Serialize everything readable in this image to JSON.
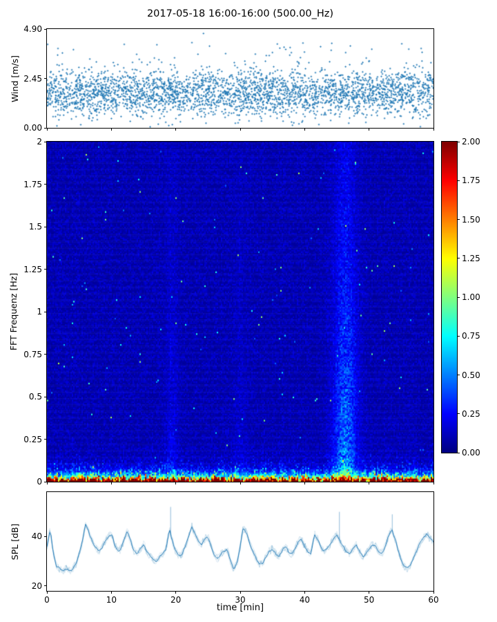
{
  "figure": {
    "title": "2017-05-18 16:00-16:00 (500.00_Hz)",
    "background": "#ffffff",
    "accent_color": "#1f77b4"
  },
  "chart_data": [
    {
      "id": "wind",
      "type": "scatter",
      "ylabel": "Wind [m/s]",
      "ylim": [
        0,
        4.9
      ],
      "xlim": [
        0,
        60
      ],
      "yticks": [
        {
          "label": "4.90",
          "value": 4.9
        },
        {
          "label": "2.45",
          "value": 2.45
        },
        {
          "label": "0.00",
          "value": 0
        }
      ],
      "marker": "+",
      "color": "#1f77b4",
      "n_points": 3200,
      "seed": 7,
      "y_mean": 1.75,
      "y_spread": 1.1,
      "high_tail_prob": 0.05
    },
    {
      "id": "spectrogram",
      "type": "heatmap",
      "ylabel": "FFT Frequenz [Hz]",
      "ylim": [
        0,
        2
      ],
      "xlim": [
        0,
        60
      ],
      "yticks": [
        {
          "label": "2",
          "value": 2
        },
        {
          "label": "1.75",
          "value": 1.75
        },
        {
          "label": "1.5",
          "value": 1.5
        },
        {
          "label": "1.25",
          "value": 1.25
        },
        {
          "label": "1",
          "value": 1
        },
        {
          "label": "0.75",
          "value": 0.75
        },
        {
          "label": "0.5",
          "value": 0.5
        },
        {
          "label": "0.25",
          "value": 0.25
        },
        {
          "label": "0",
          "value": 0
        }
      ],
      "colormap": "jet",
      "clim": [
        0,
        2
      ],
      "colorbar_ticks": [
        {
          "label": "2.00",
          "value": 2
        },
        {
          "label": "1.75",
          "value": 1.75
        },
        {
          "label": "1.50",
          "value": 1.5
        },
        {
          "label": "1.25",
          "value": 1.25
        },
        {
          "label": "1.00",
          "value": 1
        },
        {
          "label": "0.75",
          "value": 0.75
        },
        {
          "label": "0.50",
          "value": 0.5
        },
        {
          "label": "0.25",
          "value": 0.25
        },
        {
          "label": "0.00",
          "value": 0
        }
      ],
      "seed": 11,
      "grid": {
        "cols": 280,
        "rows": 220
      },
      "features": {
        "noise_floor": 0.05,
        "low_freq_band": {
          "amplitude": 2.6,
          "decay_hz": 0.022
        },
        "mid_speckle": {
          "amplitude": 1.3,
          "decay_hz": 0.06
        },
        "bright_stripes": [
          {
            "t_center": 46.3,
            "t_sigma": 1.3,
            "amplitude": 0.55
          },
          {
            "t_center": 19.4,
            "t_sigma": 0.7,
            "amplitude": 0.15
          },
          {
            "t_center": 30.0,
            "t_sigma": 0.8,
            "amplitude": 0.08
          }
        ]
      }
    },
    {
      "id": "spl",
      "type": "line",
      "ylabel": "SPL [dB]",
      "xlabel": "time [min]",
      "ylim": [
        18,
        58
      ],
      "xlim": [
        0,
        60
      ],
      "yticks": [
        {
          "label": "40",
          "value": 40
        },
        {
          "label": "20",
          "value": 20
        }
      ],
      "xticks": [
        {
          "label": "0",
          "value": 0
        },
        {
          "label": "10",
          "value": 10
        },
        {
          "label": "20",
          "value": 20
        },
        {
          "label": "30",
          "value": 30
        },
        {
          "label": "40",
          "value": 40
        },
        {
          "label": "50",
          "value": 50
        },
        {
          "label": "60",
          "value": 60
        }
      ],
      "color": "#1f77b4",
      "x_start": 0,
      "x_step": 0.5,
      "values": [
        36,
        43,
        33,
        28,
        27,
        26,
        27,
        26,
        27,
        29,
        33,
        38,
        45,
        42,
        38,
        36,
        34,
        35,
        38,
        40,
        41,
        37,
        34,
        35,
        39,
        42,
        38,
        34,
        33,
        35,
        37,
        34,
        32,
        31,
        30,
        32,
        33,
        35,
        43,
        38,
        34,
        32,
        33,
        36,
        40,
        44,
        41,
        38,
        37,
        39,
        40,
        36,
        32,
        31,
        33,
        34,
        35,
        30,
        27,
        29,
        36,
        44,
        41,
        37,
        34,
        31,
        29,
        29,
        32,
        34,
        35,
        33,
        32,
        34,
        36,
        34,
        33,
        35,
        38,
        39,
        36,
        34,
        33,
        41,
        39,
        36,
        34,
        35,
        37,
        39,
        41,
        38,
        36,
        34,
        33,
        35,
        37,
        34,
        32,
        33,
        35,
        37,
        36,
        34,
        33,
        36,
        40,
        43,
        39,
        35,
        30,
        28,
        27,
        29,
        32,
        35,
        38,
        40,
        41,
        39,
        38
      ],
      "spikes": [
        {
          "t": 19.2,
          "v": 52
        },
        {
          "t": 45.4,
          "v": 50
        },
        {
          "t": 53.6,
          "v": 49
        }
      ],
      "seed": 23
    }
  ]
}
